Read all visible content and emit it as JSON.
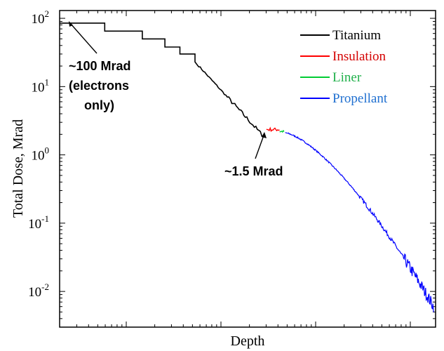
{
  "chart_data": {
    "type": "line",
    "xlabel": "Depth",
    "ylabel": "Total Dose, Mrad",
    "x_scale": "log",
    "y_scale": "log",
    "x_ticks_labeled": false,
    "ylim": [
      0.003,
      130
    ],
    "y_ticks": [
      {
        "base": "10",
        "exp": "2",
        "value": 100
      },
      {
        "base": "10",
        "exp": "1",
        "value": 10
      },
      {
        "base": "10",
        "exp": "0",
        "value": 1
      },
      {
        "base": "10",
        "exp": "-1",
        "value": 0.1
      },
      {
        "base": "10",
        "exp": "-2",
        "value": 0.01
      }
    ],
    "legend_position": "top-right",
    "grid": false,
    "series": [
      {
        "name": "Titanium",
        "color": "#000000"
      },
      {
        "name": "Insulation",
        "color": "#ff0000",
        "label_color": "#d40000"
      },
      {
        "name": "Liner",
        "color": "#00cc33",
        "label_color": "#22b14c"
      },
      {
        "name": "Propellant",
        "color": "#0000ff",
        "label_color": "#1f6fd0"
      }
    ],
    "annotations": [
      {
        "lines": [
          "~100 Mrad",
          "(electrons",
          "only)"
        ],
        "points_to_value": 85
      },
      {
        "lines": [
          "~1.5 Mrad"
        ],
        "points_to_value": 1.8
      }
    ]
  }
}
